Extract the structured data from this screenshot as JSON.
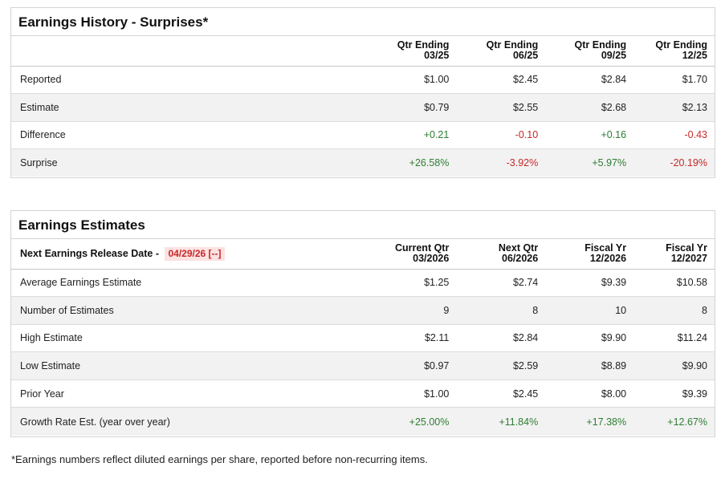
{
  "history": {
    "title": "Earnings History - Surprises*",
    "columns": [
      {
        "line1": "Qtr Ending",
        "line2": "03/25"
      },
      {
        "line1": "Qtr Ending",
        "line2": "06/25"
      },
      {
        "line1": "Qtr Ending",
        "line2": "09/25"
      },
      {
        "line1": "Qtr Ending",
        "line2": "12/25"
      }
    ],
    "rows": [
      {
        "label": "Reported",
        "values": [
          "$1.00",
          "$2.45",
          "$2.84",
          "$1.70"
        ]
      },
      {
        "label": "Estimate",
        "values": [
          "$0.79",
          "$2.55",
          "$2.68",
          "$2.13"
        ]
      },
      {
        "label": "Difference",
        "values": [
          "+0.21",
          "-0.10",
          "+0.16",
          "-0.43"
        ]
      },
      {
        "label": "Surprise",
        "values": [
          "+26.58%",
          "-3.92%",
          "+5.97%",
          "-20.19%"
        ]
      }
    ]
  },
  "estimates": {
    "title": "Earnings Estimates",
    "release_label": "Next Earnings Release Date -",
    "release_date": "04/29/26",
    "release_link": "[--]",
    "columns": [
      {
        "line1": "Current Qtr",
        "line2": "03/2026"
      },
      {
        "line1": "Next Qtr",
        "line2": "06/2026"
      },
      {
        "line1": "Fiscal Yr",
        "line2": "12/2026"
      },
      {
        "line1": "Fiscal Yr",
        "line2": "12/2027"
      }
    ],
    "rows": [
      {
        "label": "Average Earnings Estimate",
        "values": [
          "$1.25",
          "$2.74",
          "$9.39",
          "$10.58"
        ]
      },
      {
        "label": "Number of Estimates",
        "values": [
          "9",
          "8",
          "10",
          "8"
        ]
      },
      {
        "label": "High Estimate",
        "values": [
          "$2.11",
          "$2.84",
          "$9.90",
          "$11.24"
        ]
      },
      {
        "label": "Low Estimate",
        "values": [
          "$0.97",
          "$2.59",
          "$8.89",
          "$9.90"
        ]
      },
      {
        "label": "Prior Year",
        "values": [
          "$1.00",
          "$2.45",
          "$8.00",
          "$9.39"
        ]
      },
      {
        "label": "Growth Rate Est. (year over year)",
        "values": [
          "+25.00%",
          "+11.84%",
          "+17.38%",
          "+12.67%"
        ]
      }
    ]
  },
  "footnote": "*Earnings numbers reflect diluted earnings per share, reported before non-recurring items.",
  "colors": {
    "positive": "#2e7d32",
    "negative": "#c62828",
    "highlight_bg": "#fde2e2"
  }
}
